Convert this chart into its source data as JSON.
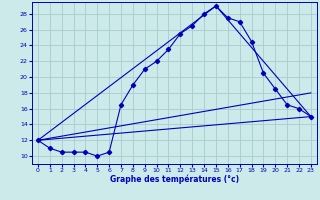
{
  "xlabel": "Graphe des températures (°c)",
  "background_color": "#cceaea",
  "grid_color": "#aacccc",
  "line_color": "#0000bb",
  "xlim": [
    -0.5,
    23.5
  ],
  "ylim": [
    9.0,
    29.5
  ],
  "xticks": [
    0,
    1,
    2,
    3,
    4,
    5,
    6,
    7,
    8,
    9,
    10,
    11,
    12,
    13,
    14,
    15,
    16,
    17,
    18,
    19,
    20,
    21,
    22,
    23
  ],
  "yticks": [
    10,
    12,
    14,
    16,
    18,
    20,
    22,
    24,
    26,
    28
  ],
  "curve1_x": [
    0,
    1,
    2,
    3,
    4,
    5,
    6,
    7,
    8,
    9,
    10,
    11,
    12,
    13,
    14,
    15,
    16,
    17,
    18,
    19,
    20,
    21,
    22,
    23
  ],
  "curve1_y": [
    12,
    11,
    10.5,
    10.5,
    10.5,
    10,
    10.5,
    16.5,
    19,
    21,
    22,
    23.5,
    25.5,
    26.5,
    28,
    29,
    27.5,
    27,
    24.5,
    20.5,
    18.5,
    16.5,
    16,
    15
  ],
  "curve2_x": [
    0,
    23
  ],
  "curve2_y": [
    12,
    15
  ],
  "curve3_x": [
    0,
    23
  ],
  "curve3_y": [
    12,
    18
  ],
  "curve4_x": [
    0,
    15,
    23
  ],
  "curve4_y": [
    12,
    29,
    15
  ]
}
